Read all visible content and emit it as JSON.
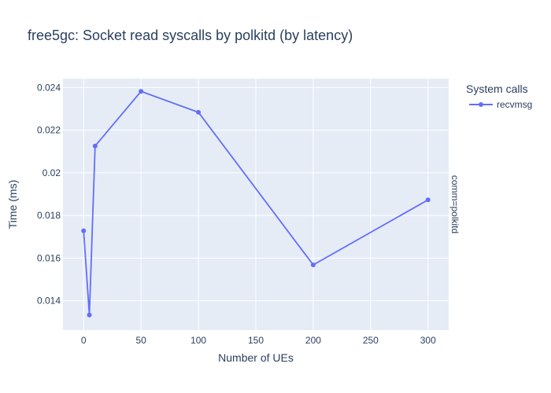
{
  "chart_data": {
    "type": "line",
    "title": "free5gc: Socket read syscalls by polkitd (by latency)",
    "xlabel": "Number of UEs",
    "ylabel": "Time (ms)",
    "xlim": [
      -18,
      318
    ],
    "ylim": [
      0.01262,
      0.02442
    ],
    "x_ticks": [
      0,
      50,
      100,
      150,
      200,
      250,
      300
    ],
    "x_tick_labels": [
      "0",
      "50",
      "100",
      "150",
      "200",
      "250",
      "300"
    ],
    "y_ticks": [
      0.014,
      0.016,
      0.018,
      0.02,
      0.022,
      0.024
    ],
    "y_tick_labels": [
      "0.014",
      "0.016",
      "0.018",
      "0.02",
      "0.022",
      "0.024"
    ],
    "grid": true,
    "legend": {
      "title": "System calls",
      "position": "top-right"
    },
    "facet_label": "comm=polkitd",
    "series": [
      {
        "name": "recvmsg",
        "color": "#636efa",
        "x": [
          0,
          5,
          10,
          50,
          100,
          200,
          300
        ],
        "y": [
          0.01728,
          0.01333,
          0.02126,
          0.02382,
          0.02284,
          0.01568,
          0.01873
        ]
      }
    ]
  },
  "colors": {
    "plot_background": "#e5ecf6",
    "grid": "#ffffff",
    "text": "#2a3f5f"
  }
}
